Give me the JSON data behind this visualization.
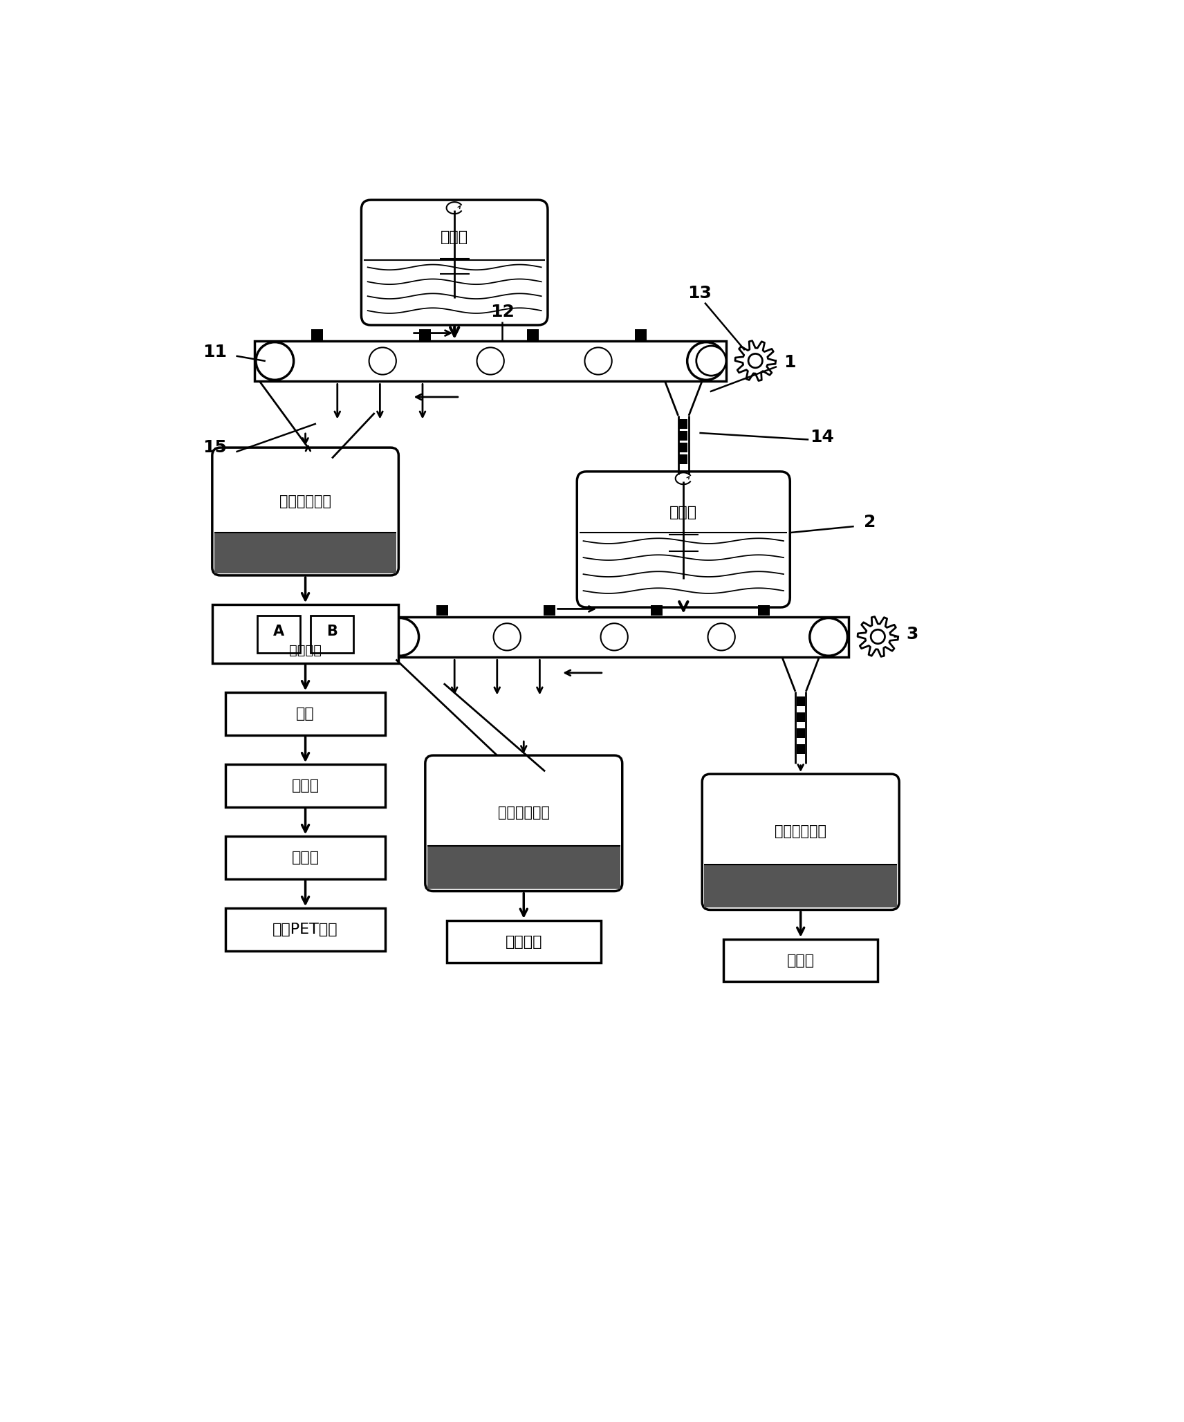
{
  "bg_color": "#ffffff",
  "labels": {
    "alcoholysis_tank": "醇解釜",
    "alcoholysis_collector": "醇解物收集罐",
    "fine_filter": "精过滤器",
    "filter_A": "A",
    "filter_B": "B",
    "concentrate": "浓缩",
    "prepolymerize": "预缩聚",
    "final_polymerize": "终缩聚",
    "regen_PET": "再生PET聚酯",
    "wash_collector": "洗涤液收集罐",
    "return_alcoholysis": "回醇解釜",
    "cotton_collector": "棉纤维收集罐",
    "post_process": "后处理",
    "num_1": "1",
    "num_2": "2",
    "num_3": "3",
    "num_11": "11",
    "num_12": "12",
    "num_13": "13",
    "num_14": "14",
    "num_15": "15"
  }
}
